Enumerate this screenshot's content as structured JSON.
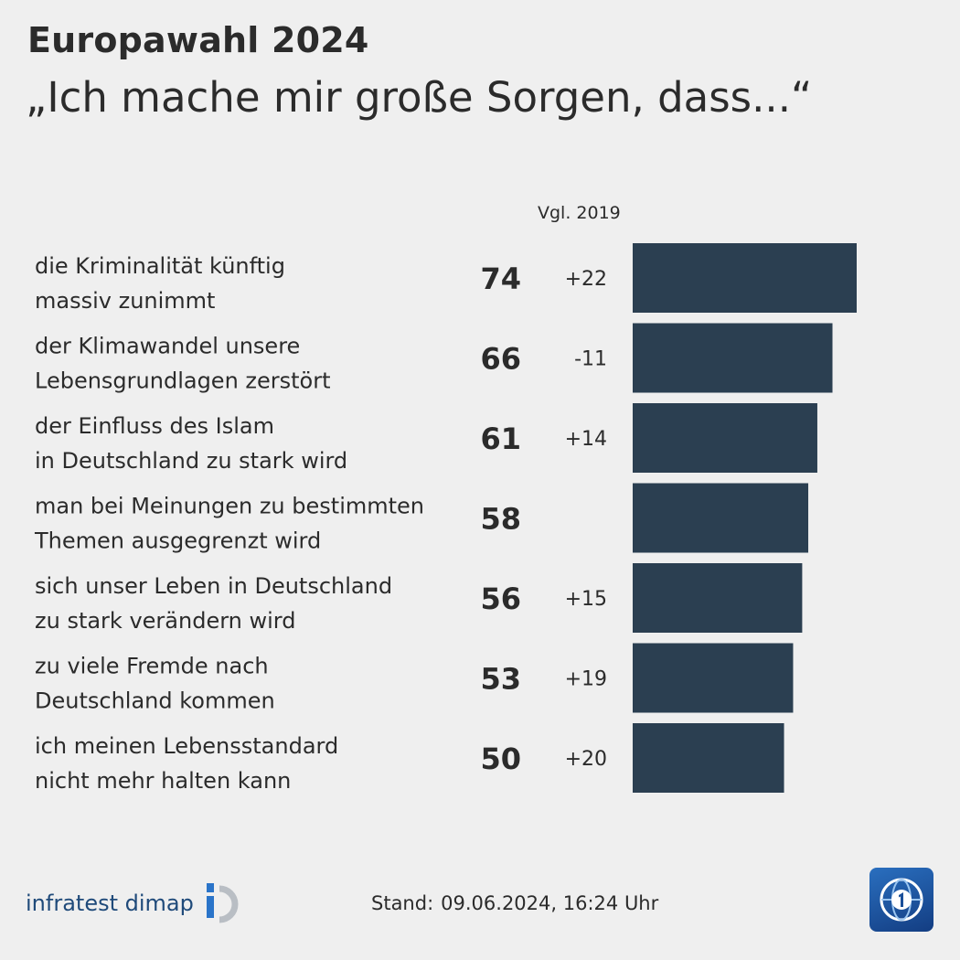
{
  "header": {
    "title": "Europawahl 2024",
    "subtitle": "„Ich mache mir große Sorgen, dass...“"
  },
  "chart_data": {
    "type": "bar",
    "orientation": "horizontal",
    "compare_header": "Vgl. 2019",
    "categories": [
      [
        "die Kriminalität künftig",
        "massiv zunimmt"
      ],
      [
        "der Klimawandel unsere",
        "Lebensgrundlagen zerstört"
      ],
      [
        "der Einfluss des Islam",
        "in Deutschland zu stark wird"
      ],
      [
        "man bei Meinungen zu bestimmten",
        "Themen ausgegrenzt wird"
      ],
      [
        "sich unser Leben in Deutschland",
        "zu stark verändern wird"
      ],
      [
        "zu viele Fremde nach",
        "Deutschland kommen"
      ],
      [
        "ich meinen Lebensstandard",
        "nicht mehr halten kann"
      ]
    ],
    "values": [
      74,
      66,
      61,
      58,
      56,
      53,
      50
    ],
    "value_labels": [
      "74",
      "66",
      "61",
      "58",
      "56",
      "53",
      "50"
    ],
    "change_vs_2019": [
      "+22",
      "-11",
      "+14",
      "",
      "+15",
      "+19",
      "+20"
    ],
    "xlim": [
      0,
      100
    ],
    "bar_color": "#2b3f51",
    "grid": false
  },
  "footer": {
    "brand": "infratest dimap",
    "stand_label": "Stand:",
    "stand_value": "09.06.2024, 16:24 Uhr",
    "tv_logo": "ard-tagesschau-logo-icon"
  },
  "colors": {
    "background": "#efefef",
    "text": "#2b2b2b",
    "bar": "#2b3f51",
    "brand": "#1f4a7a"
  }
}
